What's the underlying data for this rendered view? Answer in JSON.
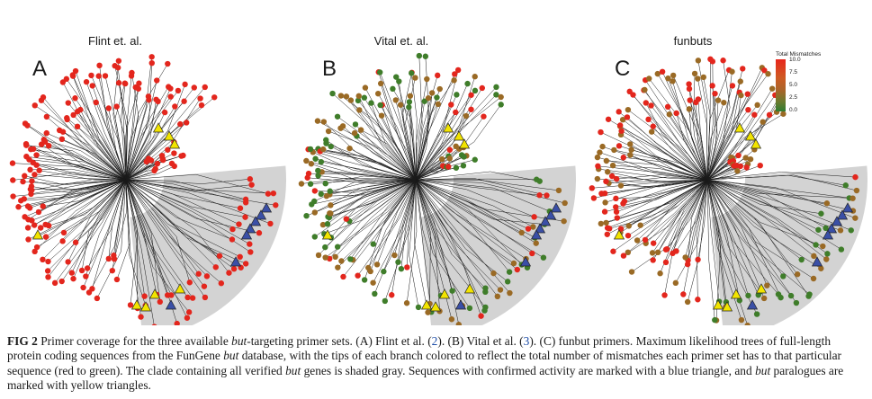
{
  "figure": {
    "panels": [
      {
        "letter": "A",
        "title": "Flint et. al.",
        "scheme": "red"
      },
      {
        "letter": "B",
        "title": "Vital et. al.",
        "scheme": "mixed"
      },
      {
        "letter": "C",
        "title": "funbuts",
        "scheme": "partial"
      }
    ],
    "legend": {
      "title": "Total Mismatches",
      "ticks": [
        "10.0",
        "7.5",
        "5.0",
        "2.5",
        "0.0"
      ],
      "colors": [
        "#e8261c",
        "#cf5a22",
        "#a8652a",
        "#6f7a2e",
        "#2e7d32"
      ]
    },
    "colors": {
      "shade": "#d3d3d3",
      "red_tip": "#e3261d",
      "green_tip": "#3f7d2a",
      "brown_tip": "#9a6a25",
      "blue_triangle": "#3a4fa6",
      "yellow_triangle": "#f2e400",
      "branch": "#1a1a1a"
    }
  },
  "caption": {
    "lead": "FIG 2",
    "parts": [
      " Primer coverage for the three available ",
      "but",
      "-targeting primer sets. (A) Flint et al. (",
      "2",
      "). (B) Vital et al. (",
      "3",
      "). (C) funbut primers. Maximum likelihood trees of full-length protein coding sequences from the FunGene ",
      "but",
      " database, with the tips of each branch colored to reflect the total number of mismatches each primer set has to that particular sequence (red to green). The clade containing all verified ",
      "but",
      " genes is shaded gray. Sequences with confirmed activity are marked with a blue triangle, and ",
      "but",
      " paralogues are marked with yellow triangles."
    ]
  }
}
